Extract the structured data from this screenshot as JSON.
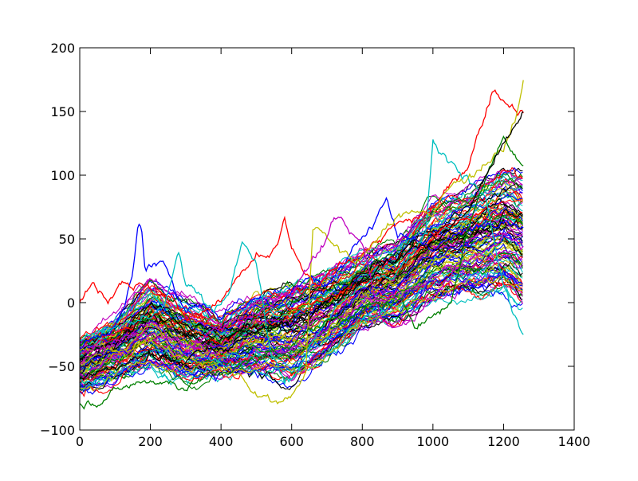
{
  "chart_data": {
    "type": "line",
    "title": "",
    "xlabel": "",
    "ylabel": "",
    "xlim": [
      0,
      1400
    ],
    "ylim": [
      -100,
      200
    ],
    "x_ticks": [
      0,
      200,
      400,
      600,
      800,
      1000,
      1200,
      1400
    ],
    "y_ticks": [
      -100,
      -50,
      0,
      50,
      100,
      150,
      200
    ],
    "x_tick_labels": [
      "0",
      "200",
      "400",
      "600",
      "800",
      "1000",
      "1200",
      "1400"
    ],
    "y_tick_labels": [
      "−100",
      "−50",
      "0",
      "50",
      "100",
      "150",
      "200"
    ],
    "grid": false,
    "legend": "none",
    "palette": [
      "#0000ff",
      "#008000",
      "#ff0000",
      "#00bfbf",
      "#bf00bf",
      "#bfbf00",
      "#000000"
    ],
    "x_range_of_series": [
      0,
      1258
    ],
    "series_count": 120,
    "series_envelope": {
      "x": [
        0,
        100,
        200,
        300,
        400,
        500,
        600,
        700,
        800,
        900,
        1000,
        1100,
        1200,
        1258
      ],
      "low": [
        -78,
        -68,
        -62,
        -72,
        -62,
        -65,
        -75,
        -55,
        -30,
        -25,
        -12,
        -10,
        -8,
        -24
      ],
      "high": [
        0,
        18,
        60,
        42,
        15,
        45,
        67,
        70,
        78,
        88,
        130,
        145,
        170,
        175
      ]
    },
    "highlighted_paths": [
      {
        "color": "#0000ff",
        "x": [
          0,
          60,
          120,
          150,
          165,
          175,
          185,
          200,
          230,
          260,
          300,
          350,
          400,
          450,
          500,
          550,
          600,
          650,
          700,
          750,
          800,
          830,
          850,
          870,
          900,
          1000,
          1100,
          1200,
          1258
        ],
        "y": [
          -35,
          -25,
          -10,
          20,
          58,
          60,
          25,
          30,
          28,
          20,
          -5,
          0,
          -10,
          -5,
          5,
          0,
          10,
          20,
          15,
          30,
          55,
          60,
          75,
          85,
          50,
          45,
          55,
          70,
          60
        ]
      },
      {
        "color": "#ff0000",
        "x": [
          0,
          40,
          80,
          120,
          160,
          200,
          250,
          300,
          350,
          400,
          450,
          500,
          530,
          560,
          580,
          600,
          640,
          680,
          720,
          760,
          800,
          850,
          900,
          950,
          1000,
          1050,
          1100,
          1150,
          1170,
          1200,
          1230,
          1258
        ],
        "y": [
          0,
          15,
          5,
          20,
          15,
          10,
          5,
          -10,
          -5,
          0,
          20,
          35,
          30,
          45,
          66,
          40,
          20,
          10,
          25,
          35,
          40,
          50,
          60,
          65,
          75,
          90,
          110,
          150,
          170,
          160,
          155,
          150
        ]
      },
      {
        "color": "#00bfbf",
        "x": [
          0,
          80,
          160,
          240,
          280,
          300,
          340,
          380,
          420,
          460,
          500,
          540,
          580,
          620,
          660,
          700,
          760,
          820,
          880,
          940,
          980,
          1000,
          1020,
          1050,
          1100,
          1150,
          1200,
          1258
        ],
        "y": [
          -30,
          -20,
          -15,
          -5,
          40,
          15,
          5,
          -5,
          10,
          45,
          30,
          -40,
          -60,
          -55,
          -30,
          -10,
          5,
          15,
          20,
          40,
          60,
          130,
          120,
          110,
          100,
          80,
          10,
          -25
        ]
      },
      {
        "color": "#bfbf00",
        "x": [
          0,
          100,
          200,
          300,
          400,
          450,
          500,
          530,
          560,
          600,
          640,
          660,
          700,
          740,
          780,
          820,
          860,
          900,
          950,
          1000,
          1050,
          1100,
          1150,
          1200,
          1240,
          1258
        ],
        "y": [
          -40,
          -35,
          -30,
          -45,
          -50,
          -55,
          -70,
          -75,
          -78,
          -70,
          -55,
          60,
          55,
          40,
          30,
          45,
          55,
          65,
          75,
          70,
          90,
          100,
          110,
          120,
          150,
          175
        ]
      },
      {
        "color": "#bf00bf",
        "x": [
          0,
          100,
          200,
          300,
          400,
          500,
          600,
          680,
          720,
          740,
          760,
          800,
          850,
          900,
          950,
          1000,
          1050,
          1100,
          1150,
          1200,
          1258
        ],
        "y": [
          -40,
          -30,
          -25,
          -35,
          -20,
          -10,
          10,
          40,
          65,
          70,
          55,
          45,
          -10,
          -20,
          -5,
          5,
          20,
          30,
          40,
          55,
          45
        ]
      },
      {
        "color": "#008000",
        "x": [
          0,
          100,
          200,
          300,
          400,
          500,
          600,
          700,
          800,
          900,
          950,
          1000,
          1050,
          1100,
          1150,
          1200,
          1258
        ],
        "y": [
          -80,
          -70,
          -60,
          -65,
          -55,
          -45,
          -30,
          -15,
          -5,
          0,
          -15,
          -10,
          0,
          60,
          100,
          130,
          110
        ]
      },
      {
        "color": "#000000",
        "x": [
          0,
          100,
          200,
          300,
          400,
          500,
          600,
          700,
          800,
          900,
          1000,
          1100,
          1150,
          1200,
          1258
        ],
        "y": [
          -60,
          -50,
          -40,
          -45,
          -35,
          -25,
          -10,
          0,
          20,
          35,
          50,
          70,
          100,
          120,
          150
        ]
      }
    ]
  }
}
